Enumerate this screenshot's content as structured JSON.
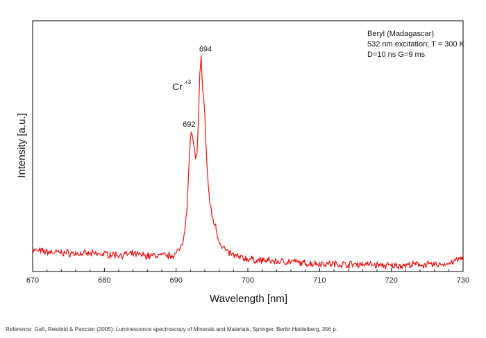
{
  "chart_data": {
    "type": "line",
    "xlabel": "Wavelength [nm]",
    "ylabel": "Intensity [a.u.]",
    "xlim": [
      670,
      730
    ],
    "ylim": [
      0,
      100
    ],
    "x_ticks": [
      670,
      680,
      690,
      700,
      710,
      720,
      730
    ],
    "y_ticks_labeled": false,
    "grid": false,
    "legend": "none",
    "line_color": "#ee1111",
    "info_lines": [
      "Beryl (Madagascar)",
      "532 nm excitation; T = 300 K",
      "D=10 ns G=9 ms"
    ],
    "annotations": {
      "species": "Cr",
      "species_charge": "+3",
      "peaks": [
        {
          "x": 692,
          "label": "692"
        },
        {
          "x": 694,
          "label": "694"
        }
      ]
    },
    "series": [
      {
        "x": [
          670,
          672,
          674,
          676,
          678,
          680,
          682,
          684,
          686,
          688,
          689,
          690,
          690.5,
          691,
          691.5,
          692,
          692.2,
          692.5,
          692.7,
          692.9,
          693.1,
          693.3,
          693.5,
          693.7,
          694,
          694.3,
          694.6,
          695,
          695.5,
          696,
          697,
          698,
          699,
          700,
          701,
          702,
          704,
          706,
          708,
          710,
          712,
          714,
          716,
          718,
          720,
          722,
          724,
          726,
          728,
          730
        ],
        "y": [
          8.5,
          7.8,
          7.5,
          7.2,
          7.0,
          7.0,
          6.6,
          6.9,
          6.3,
          6.4,
          6.2,
          7.0,
          9.0,
          12.8,
          24.0,
          54.5,
          55.0,
          50.0,
          44.5,
          45.5,
          60.0,
          78.0,
          85.0,
          74.0,
          62.0,
          42.0,
          30.0,
          22.0,
          18.0,
          12.0,
          8.0,
          6.5,
          5.5,
          5.0,
          4.5,
          4.5,
          4.0,
          4.0,
          3.2,
          3.2,
          3.0,
          2.8,
          3.0,
          2.6,
          2.2,
          2.5,
          2.8,
          2.6,
          3.2,
          5.5
        ]
      }
    ]
  },
  "reference": "Reference: Gaft, Reisfeld & Panczer (2005): Luminescence spectroscopy of Minerals and Materials, Springer, Berlin Heidelberg, 356 p."
}
